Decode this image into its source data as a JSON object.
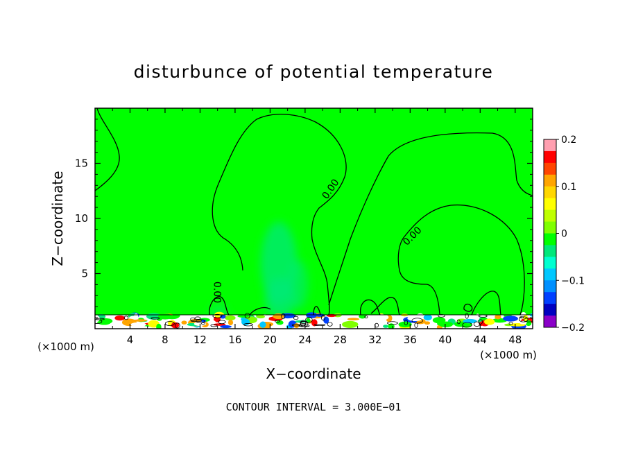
{
  "chart_data": {
    "type": "heatmap",
    "title": "disturbunce of potential temperature",
    "xlabel": "X−coordinate",
    "ylabel": "Z−coordinate",
    "x_unit": "(×1000 m)",
    "xlim": [
      0,
      50
    ],
    "ylim": [
      0,
      20
    ],
    "x_ticks": [
      4,
      8,
      12,
      16,
      20,
      24,
      28,
      32,
      36,
      40,
      44,
      48
    ],
    "y_ticks": [
      5,
      10,
      15
    ],
    "colorbar": {
      "range": [
        -0.2,
        0.2
      ],
      "tick_values": [
        0.2,
        0.1,
        0,
        -0.1,
        -0.2
      ],
      "tick_labels": [
        "0.2",
        "0.1",
        "0",
        "−0.1",
        "−0.2"
      ],
      "colors": [
        "#ff9fb0",
        "#ff0000",
        "#ff4500",
        "#ffa500",
        "#ffd700",
        "#ffff00",
        "#bfff00",
        "#7fff00",
        "#00ff00",
        "#00e87a",
        "#00ffd0",
        "#00c8ff",
        "#0090ff",
        "#0040ff",
        "#0000c0",
        "#8a00c8"
      ]
    },
    "contour_labels": [
      {
        "text": "0.00",
        "x": 13.6,
        "z": 3.3
      },
      {
        "text": "0.00",
        "x": 27.2,
        "z": 12.5
      },
      {
        "text": "0.00",
        "x": 36.5,
        "z": 8.2
      }
    ],
    "contour_interval_text": "CONTOUR INTERVAL =  3.000E−01",
    "background_value": 0.0,
    "features": [
      {
        "name": "weak cool plume",
        "x": 21,
        "z": 7,
        "value": -0.02
      },
      {
        "name": "surface boundary layer turbulence",
        "z_range": [
          0,
          1.3
        ],
        "value_range": [
          -0.2,
          0.2
        ]
      }
    ]
  }
}
